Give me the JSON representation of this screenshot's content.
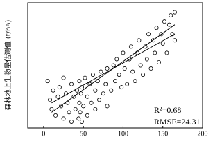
{
  "chart_data": {
    "type": "scatter",
    "y_label": "森林地上生物量估测值 (t/ha)",
    "x": [
      5,
      8,
      10,
      12,
      15,
      18,
      20,
      22,
      25,
      25,
      28,
      30,
      32,
      35,
      35,
      38,
      40,
      42,
      44,
      45,
      45,
      46,
      47,
      48,
      48,
      50,
      52,
      55,
      55,
      58,
      60,
      62,
      65,
      65,
      68,
      70,
      72,
      75,
      78,
      80,
      80,
      85,
      88,
      90,
      92,
      95,
      98,
      100,
      102,
      105,
      108,
      110,
      112,
      115,
      118,
      120,
      122,
      125,
      128,
      130,
      132,
      135,
      138,
      140,
      142,
      145,
      148,
      150,
      152,
      155,
      158,
      160,
      162,
      165,
      165
    ],
    "values": [
      75,
      45,
      30,
      60,
      20,
      50,
      65,
      35,
      15,
      80,
      55,
      40,
      25,
      70,
      10,
      50,
      30,
      60,
      15,
      40,
      75,
      25,
      55,
      10,
      65,
      35,
      80,
      20,
      50,
      70,
      40,
      85,
      30,
      60,
      75,
      45,
      90,
      55,
      70,
      35,
      95,
      60,
      100,
      75,
      110,
      85,
      65,
      120,
      95,
      70,
      110,
      130,
      90,
      75,
      120,
      140,
      100,
      85,
      130,
      110,
      150,
      95,
      140,
      120,
      160,
      105,
      150,
      135,
      170,
      120,
      165,
      180,
      150,
      185,
      140
    ],
    "color": "#000000",
    "lines": [
      {
        "x": [
          10,
          165
        ],
        "values": [
          25,
          165
        ]
      },
      {
        "x": [
          10,
          165
        ],
        "values": [
          40,
          150
        ]
      }
    ],
    "xlim": [
      -20,
      200
    ],
    "ylim": [
      0,
      200
    ],
    "xticks": [
      0,
      50,
      100,
      150,
      200
    ],
    "annotations": [
      "R²=0.68",
      "RMSE=24.31"
    ]
  }
}
